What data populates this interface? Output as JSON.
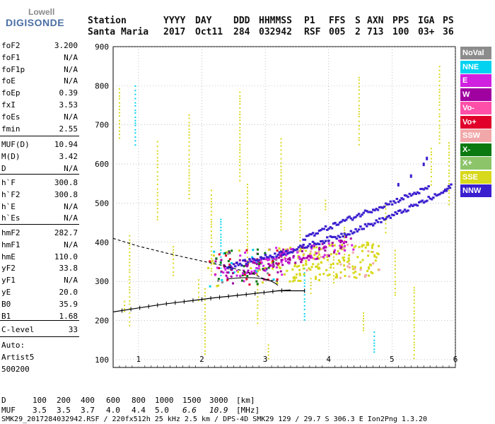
{
  "logo": {
    "top": "Lowell",
    "main": "DIGISONDE"
  },
  "header": {
    "labels": [
      "Station",
      "YYYY",
      "DAY",
      "DDD",
      "HHMMSS",
      "P1",
      "FFS",
      "S",
      "AXN",
      "PPS",
      "IGA",
      "PS"
    ],
    "values": [
      "Santa Maria",
      "2017",
      "Oct11",
      "284",
      "032942",
      "RSF",
      "005",
      "2",
      "713",
      "100",
      "03+",
      "36"
    ]
  },
  "params_group1": [
    {
      "label": "foF2",
      "value": "3.200"
    },
    {
      "label": "foF1",
      "value": "N/A"
    },
    {
      "label": "foF1p",
      "value": "N/A"
    },
    {
      "label": "foE",
      "value": "N/A"
    },
    {
      "label": "foEp",
      "value": "0.39"
    },
    {
      "label": "fxI",
      "value": "3.53"
    },
    {
      "label": "foEs",
      "value": "N/A"
    },
    {
      "label": "fmin",
      "value": "2.55"
    }
  ],
  "params_group2": [
    {
      "label": "MUF(D)",
      "value": "10.94"
    },
    {
      "label": "M(D)",
      "value": "3.42"
    },
    {
      "label": "D",
      "value": "N/A"
    }
  ],
  "params_group3": [
    {
      "label": "h`F",
      "value": "300.8"
    },
    {
      "label": "h`F2",
      "value": "300.8"
    },
    {
      "label": "h`E",
      "value": "N/A"
    },
    {
      "label": "h`Es",
      "value": "N/A"
    }
  ],
  "params_group4": [
    {
      "label": "hmF2",
      "value": "282.7"
    },
    {
      "label": "hmF1",
      "value": "N/A"
    },
    {
      "label": "hmE",
      "value": "110.0"
    },
    {
      "label": "yF2",
      "value": "33.8"
    },
    {
      "label": "yF1",
      "value": "N/A"
    },
    {
      "label": "yE",
      "value": "20.0"
    },
    {
      "label": "B0",
      "value": "35.9"
    },
    {
      "label": "B1",
      "value": "1.68"
    }
  ],
  "params_group5": [
    {
      "label": "C-level",
      "value": "33"
    }
  ],
  "auto_info": {
    "line1": "Auto:",
    "line2": "Artist5",
    "line3": "500200"
  },
  "legend": [
    {
      "label": "NoVal",
      "color": "#8c8c8c",
      "text_color": "#ffffff"
    },
    {
      "label": "NNE",
      "color": "#00d2f0",
      "text_color": "#ffffff"
    },
    {
      "label": "E",
      "color": "#d020e0",
      "text_color": "#ffffff"
    },
    {
      "label": "W",
      "color": "#a000a0",
      "text_color": "#ffffff"
    },
    {
      "label": "Vo-",
      "color": "#ff4fa8",
      "text_color": "#ffffff"
    },
    {
      "label": "Vo+",
      "color": "#e0002a",
      "text_color": "#ffffff"
    },
    {
      "label": "SSW",
      "color": "#f2a8a8",
      "text_color": "#ffffff"
    },
    {
      "label": "X-",
      "color": "#0a7a10",
      "text_color": "#ffffff"
    },
    {
      "label": "X+",
      "color": "#8cc46a",
      "text_color": "#ffffff"
    },
    {
      "label": "SSE",
      "color": "#d8d81c",
      "text_color": "#ffffff"
    },
    {
      "label": "NNW",
      "color": "#3a1fcf",
      "text_color": "#ffffff"
    }
  ],
  "footer": {
    "d_label": "D",
    "d_values": [
      "100",
      "200",
      "400",
      "600",
      "800",
      "1000",
      "1500",
      "3000",
      "[km]"
    ],
    "muf_label": "MUF",
    "muf_values": [
      "3.5",
      "3.5",
      "3.7",
      "4.0",
      "4.4",
      "5.0",
      "6.6",
      "10.9",
      "[MHz]"
    ],
    "file_line": "SMK29_2017284032942.RSF / 220fx512h 25 kHz 2.5 km / DPS-4D SMK29 129 / 29.7 S 306.3 E Ion2Png 1.3.20"
  },
  "chart_data": {
    "type": "scatter",
    "title": "",
    "xlabel": "",
    "ylabel": "",
    "xlim": [
      0.6,
      6.0
    ],
    "ylim": [
      80,
      900
    ],
    "x_ticks": [
      1,
      2,
      3,
      4,
      5,
      6
    ],
    "y_ticks": [
      100,
      200,
      300,
      400,
      500,
      600,
      700,
      800,
      900
    ],
    "y_tick_labels": [
      "100",
      "200",
      "300",
      "400",
      "500",
      "600",
      "700",
      "800",
      "900"
    ],
    "x_tick_labels": [
      "1",
      "2",
      "3",
      "4",
      "5",
      "6"
    ],
    "grid": "dotted",
    "traces": [
      {
        "name": "NNW",
        "x": [
          2.4,
          2.6,
          2.8,
          3.0,
          3.2,
          3.4,
          3.6,
          3.8,
          4.0,
          4.2,
          4.4,
          4.6,
          4.8,
          5.0,
          5.2,
          5.4,
          5.6,
          5.8,
          5.95
        ],
        "y": [
          335,
          345,
          355,
          362,
          370,
          378,
          388,
          398,
          408,
          418,
          430,
          442,
          455,
          468,
          482,
          497,
          512,
          527,
          545
        ]
      },
      {
        "name": "NNW-upper",
        "x": [
          3.6,
          3.8,
          4.0,
          4.2,
          4.4,
          4.6,
          4.8,
          5.0,
          5.2,
          5.4,
          5.6
        ],
        "y": [
          410,
          425,
          438,
          452,
          465,
          478,
          490,
          502,
          515,
          528,
          540
        ]
      },
      {
        "name": "SSE",
        "x": [
          3.4,
          3.6,
          3.8,
          4.0,
          4.2,
          4.4,
          4.6
        ],
        "y": [
          322,
          326,
          330,
          336,
          342,
          348,
          355
        ]
      },
      {
        "name": "ordinary-trace",
        "x": [
          0.6,
          1.0,
          1.4,
          1.8,
          2.2,
          2.6,
          3.0,
          3.2,
          3.4
        ],
        "y": [
          222,
          232,
          242,
          250,
          258,
          265,
          272,
          276,
          278
        ]
      },
      {
        "name": "profile",
        "x": [
          0.6,
          1.0,
          1.5,
          2.0,
          2.4,
          2.8,
          3.0,
          3.2
        ],
        "y": [
          410,
          390,
          370,
          352,
          338,
          320,
          305,
          300
        ]
      }
    ]
  }
}
